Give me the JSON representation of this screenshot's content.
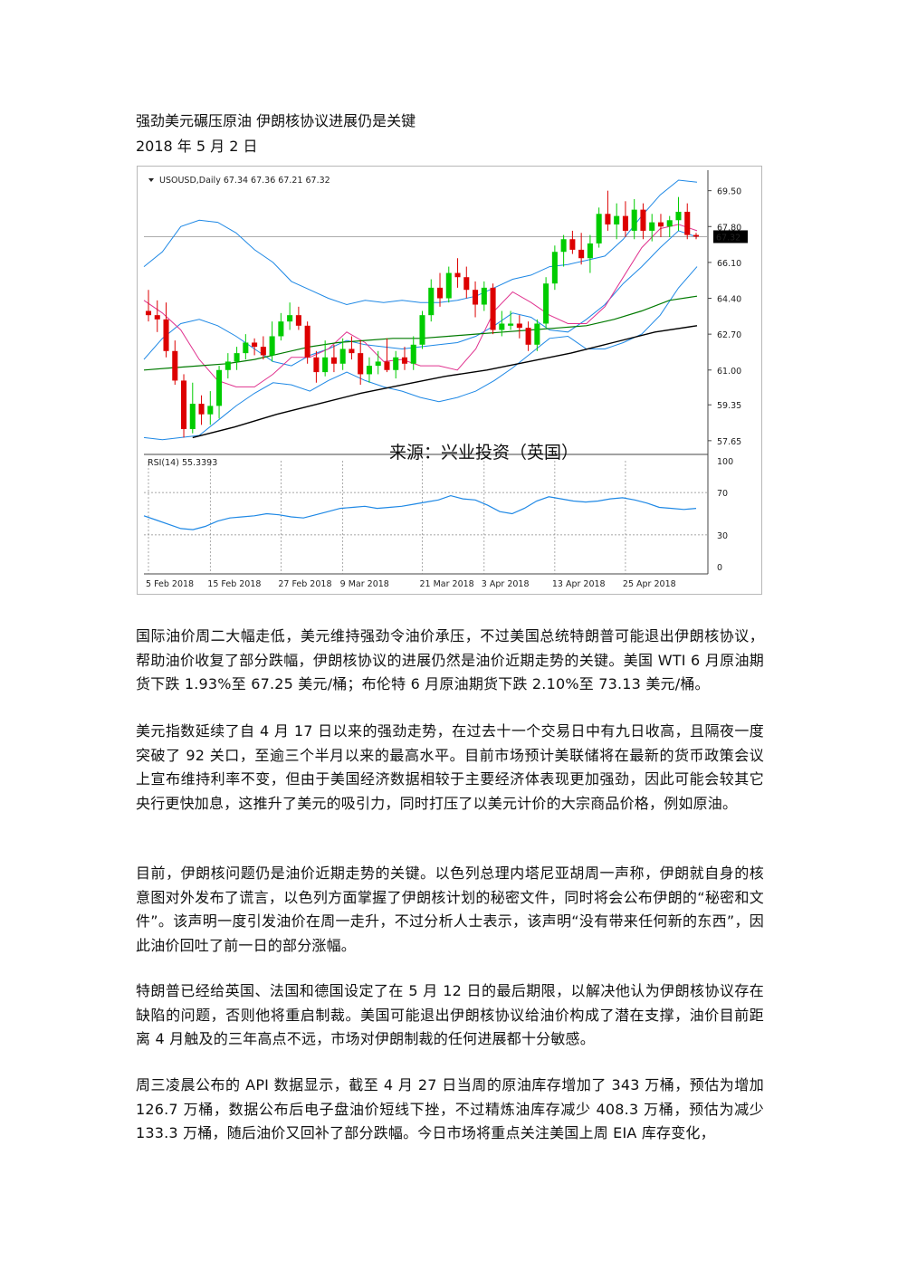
{
  "document": {
    "title": "强劲美元碾压原油  伊朗核协议进展仍是关键",
    "date": "2018 年 5 月 2 日",
    "paragraphs": [
      "国际油价周二大幅走低，美元维持强劲令油价承压，不过美国总统特朗普可能退出伊朗核协议，帮助油价收复了部分跌幅，伊朗核协议的进展仍然是油价近期走势的关键。美国 WTI 6 月原油期货下跌 1.93%至 67.25 美元/桶；布伦特 6 月原油期货下跌 2.10%至 73.13 美元/桶。",
      "美元指数延续了自 4 月 17 日以来的强劲走势，在过去十一个交易日中有九日收高，且隔夜一度突破了 92 关口，至逾三个半月以来的最高水平。目前市场预计美联储将在最新的货币政策会议上宣布维持利率不变，但由于美国经济数据相较于主要经济体表现更加强劲，因此可能会较其它央行更快加息，这推升了美元的吸引力，同时打压了以美元计价的大宗商品价格，例如原油。",
      "目前，伊朗核问题仍是油价近期走势的关键。以色列总理内塔尼亚胡周一声称，伊朗就自身的核意图对外发布了谎言，以色列方面掌握了伊朗核计划的秘密文件，同时将会公布伊朗的“秘密和文件”。该声明一度引发油价在周一走升，不过分析人士表示，该声明“没有带来任何新的东西”，因此油价回吐了前一日的部分涨幅。",
      "特朗普已经给英国、法国和德国设定了在 5 月 12 日的最后期限，以解决他认为伊朗核协议存在缺陷的问题，否则他将重启制裁。美国可能退出伊朗核协议给油价构成了潜在支撑，油价目前距离 4 月触及的三年高点不远，市场对伊朗制裁的任何进展都十分敏感。",
      "周三凌晨公布的 API 数据显示，截至 4 月 27 日当周的原油库存增加了 343 万桶，预估为增加 126.7 万桶，数据公布后电子盘油价短线下挫，不过精炼油库存减少 408.3 万桶，预估为减少 133.3 万桶，随后油价又回补了部分跌幅。今日市场将重点关注美国上周 EIA 库存变化，"
    ]
  },
  "chart_data": {
    "type": "candlestick",
    "header_label": "USOUSD,Daily  67.34 67.36 67.21 67.32",
    "last_price_label": "67.32",
    "watermark": "来源：兴业投资（英国）",
    "colors": {
      "up": "#00cc00",
      "down": "#dd0000",
      "bollinger": "#1e88e5",
      "ma_short": "#e0338f",
      "ma_mid": "#007a00",
      "ma_long": "#000000",
      "rsi": "#1e88e5"
    },
    "price_axis": {
      "ylim": [
        57.0,
        70.3
      ],
      "ticks": [
        {
          "value": 69.5,
          "label": "69.50"
        },
        {
          "value": 67.8,
          "label": "67.80"
        },
        {
          "value": 66.1,
          "label": "66.10"
        },
        {
          "value": 64.4,
          "label": "64.40"
        },
        {
          "value": 62.7,
          "label": "62.70"
        },
        {
          "value": 61.0,
          "label": "61.00"
        },
        {
          "value": 59.35,
          "label": "59.35"
        },
        {
          "value": 57.65,
          "label": "57.65"
        }
      ]
    },
    "x_labels": [
      "5 Feb 2018",
      "15 Feb 2018",
      "27 Feb 2018",
      "9 Mar 2018",
      "21 Mar 2018",
      "3 Apr 2018",
      "13 Apr 2018",
      "25 Apr 2018"
    ],
    "candles": [
      {
        "o": 63.8,
        "h": 64.8,
        "l": 63.3,
        "c": 63.6
      },
      {
        "o": 63.6,
        "h": 64.3,
        "l": 62.8,
        "c": 63.4
      },
      {
        "o": 63.4,
        "h": 64.2,
        "l": 61.6,
        "c": 61.9
      },
      {
        "o": 61.9,
        "h": 62.4,
        "l": 60.3,
        "c": 60.5
      },
      {
        "o": 60.5,
        "h": 60.8,
        "l": 57.8,
        "c": 58.2
      },
      {
        "o": 58.2,
        "h": 60.4,
        "l": 58.0,
        "c": 59.4
      },
      {
        "o": 59.4,
        "h": 59.8,
        "l": 58.4,
        "c": 58.9
      },
      {
        "o": 58.9,
        "h": 60.0,
        "l": 58.4,
        "c": 59.3
      },
      {
        "o": 59.3,
        "h": 61.2,
        "l": 58.7,
        "c": 61.0
      },
      {
        "o": 61.0,
        "h": 61.8,
        "l": 60.6,
        "c": 61.4
      },
      {
        "o": 61.4,
        "h": 62.1,
        "l": 61.0,
        "c": 61.8
      },
      {
        "o": 61.8,
        "h": 62.7,
        "l": 61.5,
        "c": 62.3
      },
      {
        "o": 62.3,
        "h": 62.5,
        "l": 61.7,
        "c": 62.1
      },
      {
        "o": 62.1,
        "h": 62.6,
        "l": 61.5,
        "c": 61.7
      },
      {
        "o": 61.7,
        "h": 63.3,
        "l": 61.4,
        "c": 62.6
      },
      {
        "o": 62.6,
        "h": 63.7,
        "l": 62.4,
        "c": 63.3
      },
      {
        "o": 63.3,
        "h": 64.2,
        "l": 62.9,
        "c": 63.6
      },
      {
        "o": 63.6,
        "h": 64.0,
        "l": 62.9,
        "c": 63.1
      },
      {
        "o": 63.1,
        "h": 63.3,
        "l": 61.3,
        "c": 61.6
      },
      {
        "o": 61.6,
        "h": 61.9,
        "l": 60.4,
        "c": 60.9
      },
      {
        "o": 60.9,
        "h": 62.4,
        "l": 60.7,
        "c": 61.6
      },
      {
        "o": 61.6,
        "h": 62.2,
        "l": 60.9,
        "c": 61.3
      },
      {
        "o": 61.3,
        "h": 62.5,
        "l": 61.0,
        "c": 62.0
      },
      {
        "o": 62.0,
        "h": 62.6,
        "l": 61.5,
        "c": 61.8
      },
      {
        "o": 61.8,
        "h": 62.4,
        "l": 60.3,
        "c": 60.8
      },
      {
        "o": 60.8,
        "h": 61.6,
        "l": 60.4,
        "c": 61.2
      },
      {
        "o": 61.2,
        "h": 61.9,
        "l": 60.8,
        "c": 61.4
      },
      {
        "o": 61.4,
        "h": 62.5,
        "l": 60.9,
        "c": 61.0
      },
      {
        "o": 61.0,
        "h": 61.9,
        "l": 60.6,
        "c": 61.6
      },
      {
        "o": 61.6,
        "h": 62.1,
        "l": 61.0,
        "c": 61.3
      },
      {
        "o": 61.3,
        "h": 62.6,
        "l": 61.0,
        "c": 62.2
      },
      {
        "o": 62.2,
        "h": 63.8,
        "l": 62.0,
        "c": 63.6
      },
      {
        "o": 63.6,
        "h": 65.3,
        "l": 63.3,
        "c": 64.9
      },
      {
        "o": 64.9,
        "h": 65.6,
        "l": 64.0,
        "c": 64.4
      },
      {
        "o": 64.4,
        "h": 65.9,
        "l": 64.2,
        "c": 65.6
      },
      {
        "o": 65.6,
        "h": 66.3,
        "l": 64.9,
        "c": 65.4
      },
      {
        "o": 65.4,
        "h": 65.9,
        "l": 64.4,
        "c": 64.8
      },
      {
        "o": 64.8,
        "h": 65.2,
        "l": 63.5,
        "c": 64.1
      },
      {
        "o": 64.1,
        "h": 65.2,
        "l": 63.8,
        "c": 64.9
      },
      {
        "o": 64.9,
        "h": 65.1,
        "l": 62.7,
        "c": 62.9
      },
      {
        "o": 62.9,
        "h": 63.8,
        "l": 62.6,
        "c": 63.2
      },
      {
        "o": 63.1,
        "h": 63.8,
        "l": 62.9,
        "c": 63.2
      },
      {
        "o": 63.2,
        "h": 63.6,
        "l": 62.5,
        "c": 63.0
      },
      {
        "o": 63.0,
        "h": 63.3,
        "l": 61.9,
        "c": 62.2
      },
      {
        "o": 62.2,
        "h": 63.4,
        "l": 61.9,
        "c": 63.2
      },
      {
        "o": 63.2,
        "h": 65.4,
        "l": 63.0,
        "c": 65.1
      },
      {
        "o": 65.1,
        "h": 66.9,
        "l": 64.8,
        "c": 66.6
      },
      {
        "o": 66.6,
        "h": 67.4,
        "l": 65.9,
        "c": 67.2
      },
      {
        "o": 67.2,
        "h": 67.6,
        "l": 66.5,
        "c": 66.7
      },
      {
        "o": 66.7,
        "h": 67.5,
        "l": 66.0,
        "c": 66.3
      },
      {
        "o": 66.3,
        "h": 67.4,
        "l": 65.6,
        "c": 67.0
      },
      {
        "o": 67.0,
        "h": 68.7,
        "l": 66.8,
        "c": 68.4
      },
      {
        "o": 68.4,
        "h": 69.5,
        "l": 67.6,
        "c": 67.9
      },
      {
        "o": 67.9,
        "h": 68.9,
        "l": 67.2,
        "c": 68.3
      },
      {
        "o": 68.3,
        "h": 69.0,
        "l": 67.3,
        "c": 67.6
      },
      {
        "o": 67.6,
        "h": 69.1,
        "l": 67.2,
        "c": 68.6
      },
      {
        "o": 68.6,
        "h": 68.9,
        "l": 67.2,
        "c": 67.6
      },
      {
        "o": 67.6,
        "h": 68.4,
        "l": 67.1,
        "c": 68.0
      },
      {
        "o": 68.0,
        "h": 68.4,
        "l": 67.3,
        "c": 67.8
      },
      {
        "o": 67.8,
        "h": 68.3,
        "l": 67.3,
        "c": 68.1
      },
      {
        "o": 68.1,
        "h": 69.2,
        "l": 67.6,
        "c": 68.5
      },
      {
        "o": 68.5,
        "h": 68.9,
        "l": 67.2,
        "c": 67.4
      },
      {
        "o": 67.4,
        "h": 67.5,
        "l": 67.2,
        "c": 67.32
      }
    ],
    "bollinger_upper": [
      65.9,
      66.6,
      67.8,
      68.1,
      68.0,
      67.5,
      66.7,
      66.1,
      65.2,
      64.8,
      64.4,
      64.1,
      64.3,
      64.2,
      64.3,
      64.2,
      64.2,
      64.3,
      64.5,
      64.9,
      65.3,
      65.5,
      65.9,
      66.0,
      66.2,
      66.4,
      67.2,
      68.3,
      69.3,
      70.0,
      69.9
    ],
    "bollinger_mid": [
      61.5,
      62.5,
      63.2,
      63.4,
      63.1,
      62.6,
      62.0,
      61.4,
      61.2,
      61.7,
      62.0,
      62.4,
      62.2,
      62.1,
      62.0,
      62.1,
      62.2,
      62.3,
      62.6,
      63.1,
      63.7,
      63.5,
      62.9,
      62.8,
      63.4,
      64.1,
      65.1,
      65.9,
      66.8,
      67.6,
      67.3
    ],
    "bollinger_lower": [
      57.8,
      57.7,
      57.8,
      57.9,
      58.6,
      59.3,
      59.9,
      60.4,
      60.3,
      60.0,
      60.5,
      60.9,
      60.5,
      60.2,
      60.0,
      59.7,
      59.5,
      59.7,
      60.0,
      60.5,
      61.1,
      61.8,
      62.5,
      62.6,
      62.0,
      62.0,
      62.3,
      62.7,
      63.6,
      64.9,
      65.9
    ],
    "ma_short": [
      64.3,
      63.7,
      62.9,
      61.5,
      60.5,
      60.2,
      60.2,
      60.8,
      61.6,
      61.6,
      62.0,
      62.8,
      62.3,
      61.4,
      61.5,
      61.2,
      61.2,
      61.0,
      62.0,
      63.8,
      64.7,
      64.2,
      63.6,
      63.2,
      63.2,
      64.0,
      65.4,
      66.8,
      67.7,
      67.9,
      67.6
    ],
    "ma_mid": [
      61.0,
      61.1,
      61.2,
      61.3,
      61.5,
      61.8,
      62.1,
      62.3,
      62.4,
      62.5,
      62.5,
      62.6,
      62.7,
      62.8,
      62.9,
      63.0,
      63.1,
      63.4,
      63.8,
      64.3,
      64.5
    ],
    "ma_long": [
      57.8,
      58.3,
      58.9,
      59.4,
      59.9,
      60.3,
      60.7,
      61.0,
      61.4,
      61.8,
      62.3,
      62.8,
      63.1
    ],
    "rsi": {
      "label": "RSI(14) 55.3393",
      "ylim": [
        0,
        100
      ],
      "ticks": [
        {
          "value": 100,
          "label": "100"
        },
        {
          "value": 70,
          "label": "70"
        },
        {
          "value": 30,
          "label": "30"
        },
        {
          "value": 0,
          "label": "0"
        }
      ],
      "values": [
        48,
        44,
        40,
        36,
        35,
        38,
        43,
        46,
        47,
        48,
        50,
        49,
        47,
        46,
        49,
        52,
        55,
        56,
        57,
        55,
        56,
        57,
        59,
        61,
        63,
        67,
        64,
        63,
        58,
        52,
        50,
        55,
        62,
        66,
        64,
        62,
        61,
        62,
        64,
        65,
        63,
        60,
        56,
        55,
        54,
        55
      ]
    }
  }
}
